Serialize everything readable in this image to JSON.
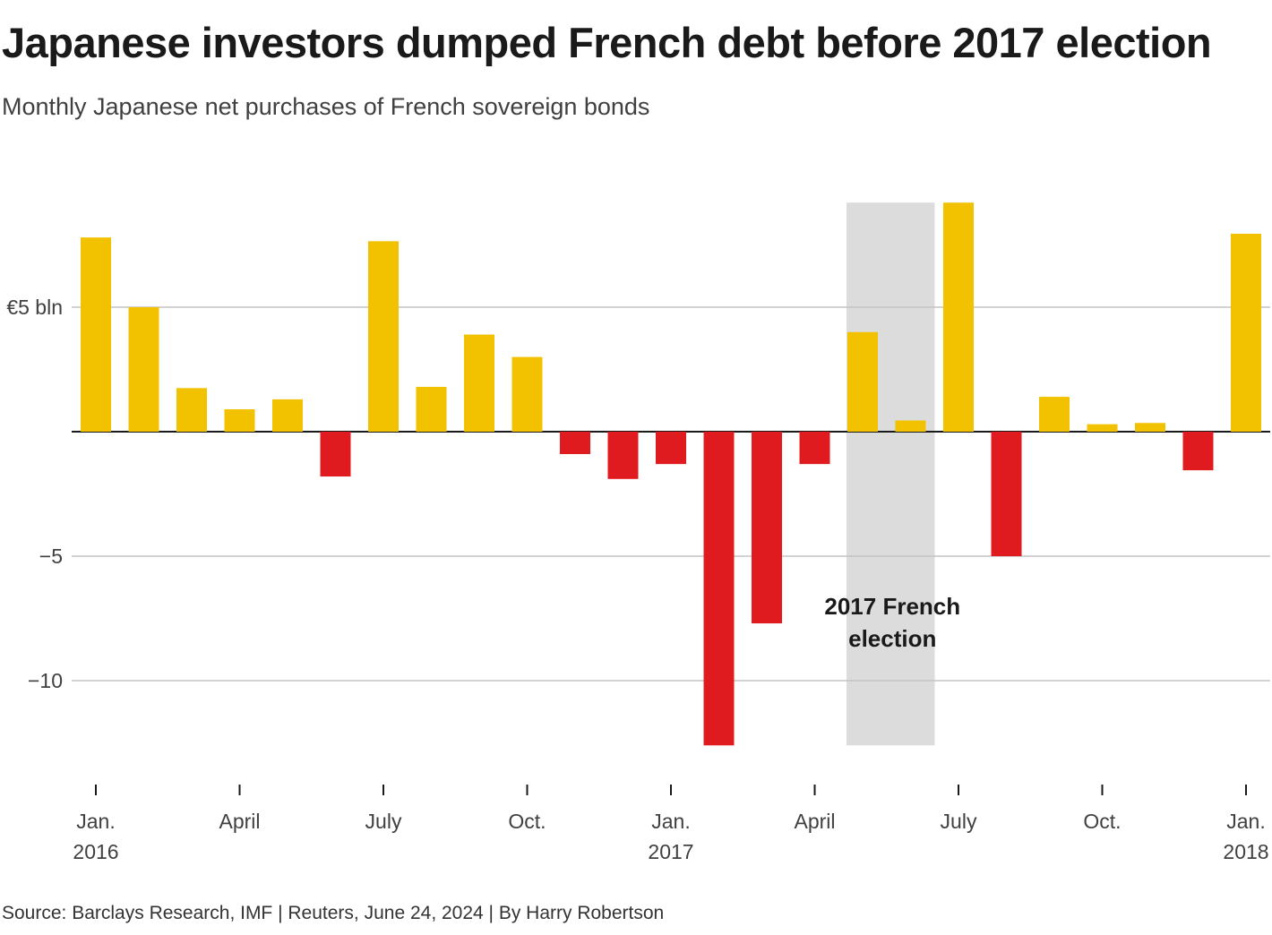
{
  "header": {
    "title": "Japanese investors dumped French debt before 2017 election",
    "subtitle": "Monthly Japanese net purchases of French sovereign bonds"
  },
  "footer": {
    "source": "Source: Barclays Research, IMF | Reuters, June 24, 2024 | By Harry Robertson"
  },
  "colors": {
    "positive": "#f2c100",
    "negative": "#e01b1f",
    "highlight": "#dcdcdc",
    "grid": "#c4c4c4",
    "axis": "#1a1a1a"
  },
  "chart_data": {
    "type": "bar",
    "title": "Japanese investors dumped French debt before 2017 election",
    "subtitle": "Monthly Japanese net purchases of French sovereign bonds",
    "unit": "€ bln",
    "categories": [
      "2016-01",
      "2016-02",
      "2016-03",
      "2016-04",
      "2016-05",
      "2016-06",
      "2016-07",
      "2016-08",
      "2016-09",
      "2016-10",
      "2016-11",
      "2016-12",
      "2017-01",
      "2017-02",
      "2017-03",
      "2017-04",
      "2017-05",
      "2017-06",
      "2017-07",
      "2017-08",
      "2017-09",
      "2017-10",
      "2017-11",
      "2017-12",
      "2018-01"
    ],
    "values": [
      7.8,
      5.0,
      1.75,
      0.9,
      1.3,
      -1.8,
      7.65,
      1.8,
      3.9,
      3.0,
      -0.9,
      -1.9,
      -1.3,
      -12.6,
      -7.7,
      -1.3,
      4.0,
      0.45,
      9.2,
      -5.0,
      1.4,
      0.3,
      0.35,
      -1.55,
      7.95
    ],
    "ylim": [
      -14,
      9.2
    ],
    "yticks": [
      {
        "value": 5,
        "label": "€5 bln"
      },
      {
        "value": -5,
        "label": "−5"
      },
      {
        "value": -10,
        "label": "−10"
      }
    ],
    "xticks": [
      {
        "category": "2016-01",
        "label": "Jan.",
        "sublabel": "2016"
      },
      {
        "category": "2016-04",
        "label": "April",
        "sublabel": ""
      },
      {
        "category": "2016-07",
        "label": "July",
        "sublabel": ""
      },
      {
        "category": "2016-10",
        "label": "Oct.",
        "sublabel": ""
      },
      {
        "category": "2017-01",
        "label": "Jan.",
        "sublabel": "2017"
      },
      {
        "category": "2017-04",
        "label": "April",
        "sublabel": ""
      },
      {
        "category": "2017-07",
        "label": "July",
        "sublabel": ""
      },
      {
        "category": "2017-10",
        "label": "Oct.",
        "sublabel": ""
      },
      {
        "category": "2018-01",
        "label": "Jan.",
        "sublabel": "2018"
      }
    ],
    "highlight": {
      "from": "2017-05",
      "to": "2017-06",
      "label_lines": [
        "2017 French",
        "election"
      ]
    },
    "grid": true,
    "legend": "none"
  }
}
